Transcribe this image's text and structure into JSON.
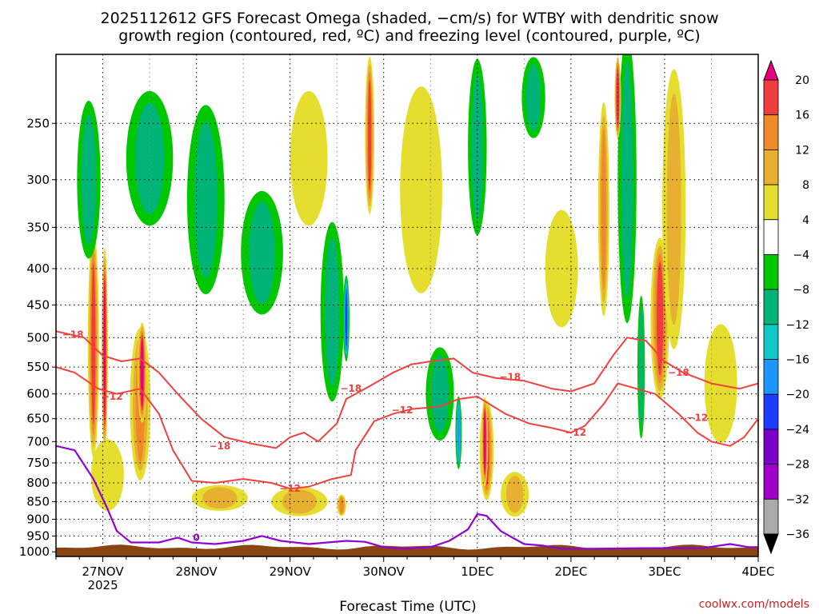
{
  "chart_data": {
    "type": "time-height",
    "title_lines": [
      "2025112612 GFS Forecast Omega (shaded, −cm/s) for WTBY with dendritic snow",
      "growth region (contoured, red, ºC) and freezing level (contoured, purple, ºC)"
    ],
    "xlabel": "Forecast Time (UTC)",
    "credit": "coolwx.com/models",
    "x_ticks": [
      {
        "label": "27NOV",
        "sub": "2025",
        "day": 1
      },
      {
        "label": "28NOV",
        "sub": "",
        "day": 2
      },
      {
        "label": "29NOV",
        "sub": "",
        "day": 3
      },
      {
        "label": "30NOV",
        "sub": "",
        "day": 4
      },
      {
        "label": "1DEC",
        "sub": "",
        "day": 5
      },
      {
        "label": "2DEC",
        "sub": "",
        "day": 6
      },
      {
        "label": "3DEC",
        "sub": "",
        "day": 7
      },
      {
        "label": "4DEC",
        "sub": "",
        "day": 8
      }
    ],
    "x_range_days": [
      0.5,
      8.0
    ],
    "y_ticks": [
      250,
      300,
      350,
      400,
      450,
      500,
      550,
      600,
      650,
      700,
      750,
      800,
      850,
      900,
      950,
      1000
    ],
    "y_range_hpa": [
      200,
      1015
    ],
    "colorbar": {
      "labels": [
        "20",
        "16",
        "12",
        "8",
        "4",
        "−4",
        "−8",
        "−12",
        "−16",
        "−20",
        "−24",
        "−28",
        "−32",
        "−36"
      ],
      "colors": [
        "#e8007e",
        "#f03c3c",
        "#f08a28",
        "#e8b030",
        "#e6de2e",
        "#ffffff",
        "#00c800",
        "#00b478",
        "#10c8c8",
        "#1e96ff",
        "#1e3cff",
        "#7800c8",
        "#a000c8",
        "#aaaaaa",
        "#000000"
      ]
    },
    "omega_blobs": [
      {
        "t": 0.9,
        "p": 510,
        "w": 0.12,
        "h": 360,
        "v": 16
      },
      {
        "t": 1.02,
        "p": 520,
        "w": 0.07,
        "h": 330,
        "v": 20
      },
      {
        "t": 1.4,
        "p": 620,
        "w": 0.22,
        "h": 300,
        "v": 12
      },
      {
        "t": 1.42,
        "p": 560,
        "w": 0.1,
        "h": 180,
        "v": 20
      },
      {
        "t": 1.05,
        "p": 780,
        "w": 0.35,
        "h": 180,
        "v": 4
      },
      {
        "t": 0.85,
        "p": 300,
        "w": 0.25,
        "h": 150,
        "v": -8
      },
      {
        "t": 1.5,
        "p": 280,
        "w": 0.5,
        "h": 120,
        "v": -8
      },
      {
        "t": 2.1,
        "p": 320,
        "w": 0.4,
        "h": 190,
        "v": -8
      },
      {
        "t": 2.25,
        "p": 840,
        "w": 0.6,
        "h": 70,
        "v": 8
      },
      {
        "t": 2.7,
        "p": 380,
        "w": 0.45,
        "h": 150,
        "v": -8
      },
      {
        "t": 3.1,
        "p": 850,
        "w": 0.6,
        "h": 80,
        "v": 8
      },
      {
        "t": 3.45,
        "p": 460,
        "w": 0.25,
        "h": 260,
        "v": -8
      },
      {
        "t": 3.6,
        "p": 470,
        "w": 0.07,
        "h": 130,
        "v": -20
      },
      {
        "t": 3.55,
        "p": 860,
        "w": 0.1,
        "h": 60,
        "v": 12
      },
      {
        "t": 3.85,
        "p": 260,
        "w": 0.1,
        "h": 130,
        "v": 16
      },
      {
        "t": 3.2,
        "p": 280,
        "w": 0.4,
        "h": 120,
        "v": 4
      },
      {
        "t": 4.4,
        "p": 310,
        "w": 0.45,
        "h": 200,
        "v": 4
      },
      {
        "t": 4.6,
        "p": 600,
        "w": 0.3,
        "h": 180,
        "v": -8
      },
      {
        "t": 4.8,
        "p": 680,
        "w": 0.06,
        "h": 160,
        "v": -16
      },
      {
        "t": 5.1,
        "p": 720,
        "w": 0.15,
        "h": 230,
        "v": 16
      },
      {
        "t": 5.08,
        "p": 700,
        "w": 0.07,
        "h": 200,
        "v": 20
      },
      {
        "t": 5.4,
        "p": 830,
        "w": 0.3,
        "h": 120,
        "v": 8
      },
      {
        "t": 5.0,
        "p": 270,
        "w": 0.2,
        "h": 150,
        "v": -8
      },
      {
        "t": 5.9,
        "p": 400,
        "w": 0.35,
        "h": 150,
        "v": 4
      },
      {
        "t": 6.35,
        "p": 330,
        "w": 0.12,
        "h": 220,
        "v": 12
      },
      {
        "t": 6.6,
        "p": 300,
        "w": 0.2,
        "h": 260,
        "v": -8
      },
      {
        "t": 6.75,
        "p": 550,
        "w": 0.08,
        "h": 250,
        "v": -8
      },
      {
        "t": 6.95,
        "p": 470,
        "w": 0.2,
        "h": 240,
        "v": 16
      },
      {
        "t": 7.1,
        "p": 330,
        "w": 0.25,
        "h": 280,
        "v": 8
      },
      {
        "t": 7.6,
        "p": 580,
        "w": 0.35,
        "h": 220,
        "v": 4
      },
      {
        "t": 6.5,
        "p": 230,
        "w": 0.05,
        "h": 60,
        "v": 20
      },
      {
        "t": 5.6,
        "p": 230,
        "w": 0.25,
        "h": 60,
        "v": -8
      }
    ],
    "dgz_minus12_label": "−12",
    "dgz_minus18_label": "−18",
    "dgz_minus12": [
      [
        0.5,
        550
      ],
      [
        0.7,
        560
      ],
      [
        0.95,
        590
      ],
      [
        1.15,
        600
      ],
      [
        1.4,
        590
      ],
      [
        1.6,
        640
      ],
      [
        1.75,
        720
      ],
      [
        1.95,
        795
      ],
      [
        2.2,
        800
      ],
      [
        2.5,
        790
      ],
      [
        2.8,
        800
      ],
      [
        3.0,
        815
      ],
      [
        3.2,
        810
      ],
      [
        3.45,
        790
      ],
      [
        3.65,
        780
      ],
      [
        3.7,
        720
      ],
      [
        3.9,
        655
      ],
      [
        4.1,
        640
      ],
      [
        4.3,
        630
      ],
      [
        4.6,
        625
      ],
      [
        4.8,
        610
      ],
      [
        5.0,
        605
      ],
      [
        5.3,
        640
      ],
      [
        5.55,
        660
      ],
      [
        5.8,
        670
      ],
      [
        6.0,
        680
      ],
      [
        6.15,
        665
      ],
      [
        6.35,
        620
      ],
      [
        6.5,
        580
      ],
      [
        6.7,
        590
      ],
      [
        6.9,
        600
      ],
      [
        7.15,
        640
      ],
      [
        7.35,
        680
      ],
      [
        7.5,
        700
      ],
      [
        7.7,
        710
      ],
      [
        7.85,
        690
      ],
      [
        8.0,
        650
      ]
    ],
    "dgz_minus18": [
      [
        0.5,
        490
      ],
      [
        0.8,
        500
      ],
      [
        1.0,
        530
      ],
      [
        1.2,
        540
      ],
      [
        1.4,
        535
      ],
      [
        1.6,
        560
      ],
      [
        1.8,
        600
      ],
      [
        2.05,
        650
      ],
      [
        2.3,
        690
      ],
      [
        2.6,
        705
      ],
      [
        2.85,
        715
      ],
      [
        3.0,
        690
      ],
      [
        3.15,
        680
      ],
      [
        3.3,
        700
      ],
      [
        3.5,
        660
      ],
      [
        3.6,
        610
      ],
      [
        3.85,
        585
      ],
      [
        4.1,
        560
      ],
      [
        4.3,
        545
      ],
      [
        4.5,
        540
      ],
      [
        4.75,
        535
      ],
      [
        4.95,
        560
      ],
      [
        5.2,
        570
      ],
      [
        5.5,
        575
      ],
      [
        5.8,
        590
      ],
      [
        6.0,
        595
      ],
      [
        6.25,
        580
      ],
      [
        6.45,
        530
      ],
      [
        6.6,
        500
      ],
      [
        6.8,
        505
      ],
      [
        7.0,
        540
      ],
      [
        7.2,
        560
      ],
      [
        7.5,
        580
      ],
      [
        7.8,
        590
      ],
      [
        8.0,
        580
      ]
    ],
    "freezing_label": "0",
    "freezing_level": [
      [
        0.5,
        710
      ],
      [
        0.7,
        720
      ],
      [
        0.9,
        790
      ],
      [
        1.05,
        870
      ],
      [
        1.15,
        935
      ],
      [
        1.3,
        970
      ],
      [
        1.6,
        970
      ],
      [
        1.8,
        955
      ],
      [
        1.95,
        970
      ],
      [
        2.2,
        975
      ],
      [
        2.5,
        965
      ],
      [
        2.7,
        950
      ],
      [
        2.9,
        965
      ],
      [
        3.2,
        975
      ],
      [
        3.6,
        965
      ],
      [
        3.8,
        968
      ],
      [
        4.0,
        985
      ],
      [
        4.2,
        990
      ],
      [
        4.5,
        985
      ],
      [
        4.7,
        965
      ],
      [
        4.9,
        930
      ],
      [
        5.0,
        885
      ],
      [
        5.1,
        890
      ],
      [
        5.25,
        935
      ],
      [
        5.5,
        975
      ],
      [
        5.7,
        980
      ],
      [
        5.9,
        990
      ],
      [
        6.2,
        990
      ],
      [
        6.8,
        988
      ],
      [
        7.4,
        988
      ],
      [
        7.7,
        975
      ],
      [
        7.9,
        985
      ],
      [
        8.0,
        985
      ]
    ],
    "ground_label": "terrain"
  }
}
